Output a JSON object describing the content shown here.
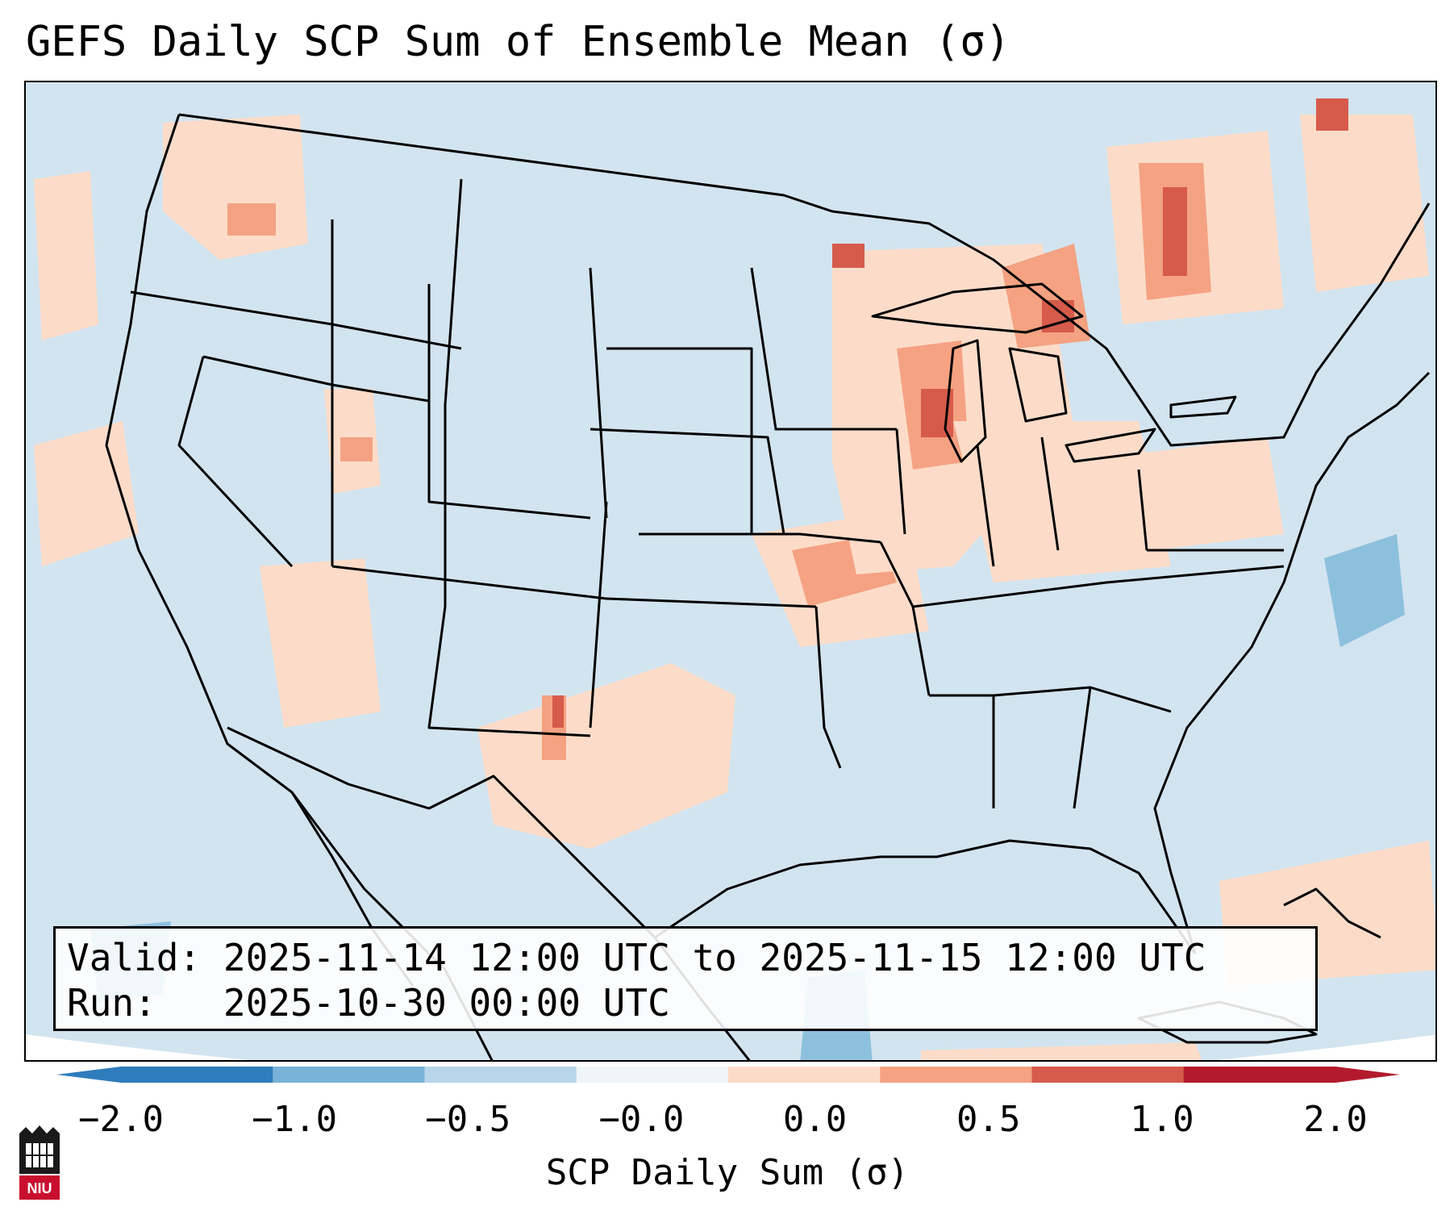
{
  "title": "GEFS Daily SCP Sum of Ensemble Mean (σ)",
  "info": {
    "valid_label": "Valid:",
    "valid_value": "2025-11-14 12:00 UTC to 2025-11-15 12:00 UTC",
    "run_label": "Run:",
    "run_value": "2025-10-30 00:00 UTC"
  },
  "colorbar": {
    "label": "SCP Daily Sum (σ)",
    "ticks": [
      "−2.0",
      "−1.0",
      "−0.5",
      "−0.0",
      "0.0",
      "0.5",
      "1.0",
      "2.0"
    ],
    "colors": [
      "#2f7cbd",
      "#78b2d8",
      "#b7d6ea",
      "#f0f5f8",
      "#fcdcc9",
      "#f4a282",
      "#d65b4b",
      "#b31b2c"
    ]
  },
  "logo": {
    "text": "NIU"
  },
  "legend_colors": {
    "background": "#d2e4ef",
    "low": "#fcdcc9",
    "mid": "#f4a282",
    "high": "#d65b4b",
    "extreme": "#b31b2c",
    "negative": "#8dc0dd"
  }
}
